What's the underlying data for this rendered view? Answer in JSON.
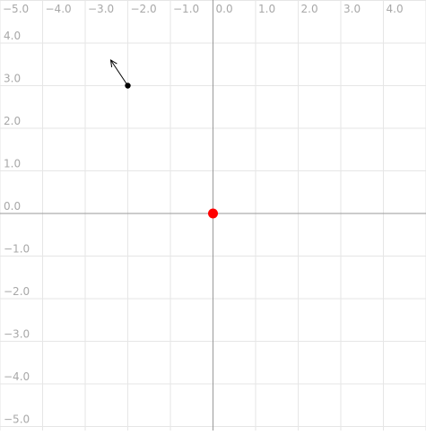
{
  "chart_data": {
    "type": "scatter",
    "title": "",
    "xlabel": "",
    "ylabel": "",
    "xlim": [
      -5,
      5
    ],
    "ylim": [
      -5,
      5
    ],
    "grid": true,
    "x_ticks": [
      {
        "value": -5,
        "label": "−5.0"
      },
      {
        "value": -4,
        "label": "−4.0"
      },
      {
        "value": -3,
        "label": "−3.0"
      },
      {
        "value": -2,
        "label": "−2.0"
      },
      {
        "value": -1,
        "label": "−1.0"
      },
      {
        "value": 0,
        "label": "0.0"
      },
      {
        "value": 1,
        "label": "1.0"
      },
      {
        "value": 2,
        "label": "2.0"
      },
      {
        "value": 3,
        "label": "3.0"
      },
      {
        "value": 4,
        "label": "4.0"
      }
    ],
    "y_ticks": [
      {
        "value": 4,
        "label": "4.0"
      },
      {
        "value": 3,
        "label": "3.0"
      },
      {
        "value": 2,
        "label": "2.0"
      },
      {
        "value": 1,
        "label": "1.0"
      },
      {
        "value": 0,
        "label": "0.0"
      },
      {
        "value": -1,
        "label": "−1.0"
      },
      {
        "value": -2,
        "label": "−2.0"
      },
      {
        "value": -3,
        "label": "−3.0"
      },
      {
        "value": -4,
        "label": "−4.0"
      },
      {
        "value": -5,
        "label": "−5.0"
      }
    ],
    "points": [
      {
        "x": -2.0,
        "y": 3.0,
        "color": "#000000",
        "kind": "point-with-arrow"
      },
      {
        "x": 0.0,
        "y": 0.0,
        "color": "#ff0000",
        "kind": "origin-marker"
      }
    ],
    "arrows": [
      {
        "from": [
          -2.0,
          3.0
        ],
        "to": [
          -2.4,
          3.6
        ],
        "color": "#000000"
      }
    ],
    "colors": {
      "grid": "#e6e6e6",
      "axis": "#999999",
      "tick_label": "#a8a8a8"
    }
  }
}
